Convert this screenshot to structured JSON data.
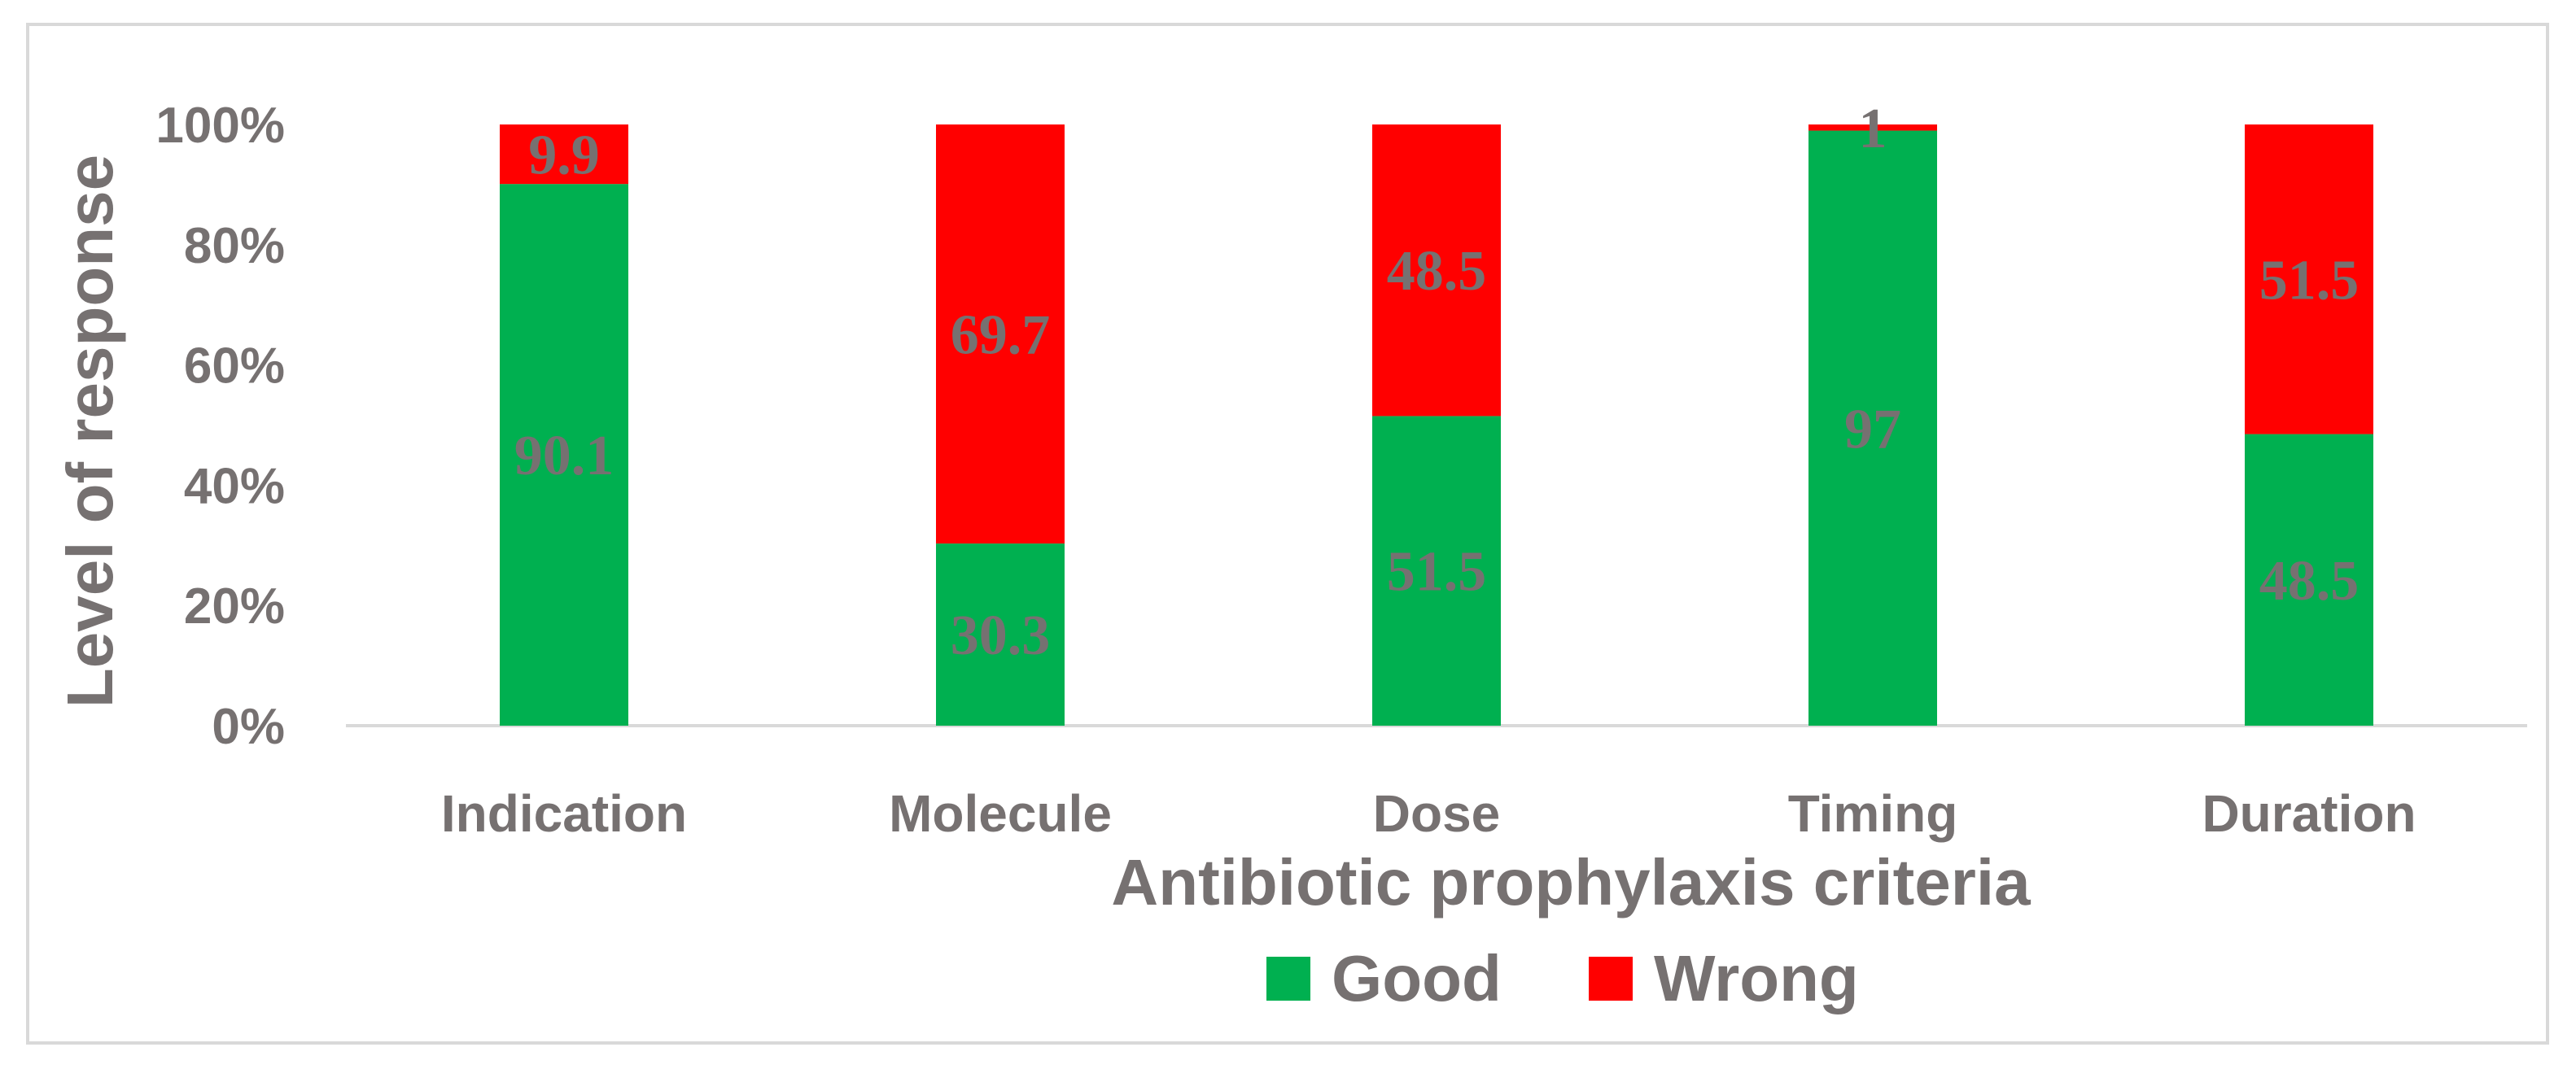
{
  "chart_data": {
    "type": "bar",
    "stacked": true,
    "percent_stacked": true,
    "title": "",
    "xlabel": "Antibiotic prophylaxis criteria",
    "ylabel": "Level of response",
    "categories": [
      "Indication",
      "Molecule",
      "Dose",
      "Timing",
      "Duration"
    ],
    "series": [
      {
        "name": "Good",
        "color": "#00b050",
        "values": [
          90.1,
          30.3,
          51.5,
          97,
          48.5
        ]
      },
      {
        "name": "Wrong",
        "color": "#ff0000",
        "values": [
          9.9,
          69.7,
          48.5,
          1,
          51.5
        ]
      }
    ],
    "ylim": [
      0,
      100
    ],
    "yticks": [
      "0%",
      "20%",
      "40%",
      "60%",
      "80%",
      "100%"
    ],
    "grid": false,
    "legend": "bottom"
  }
}
